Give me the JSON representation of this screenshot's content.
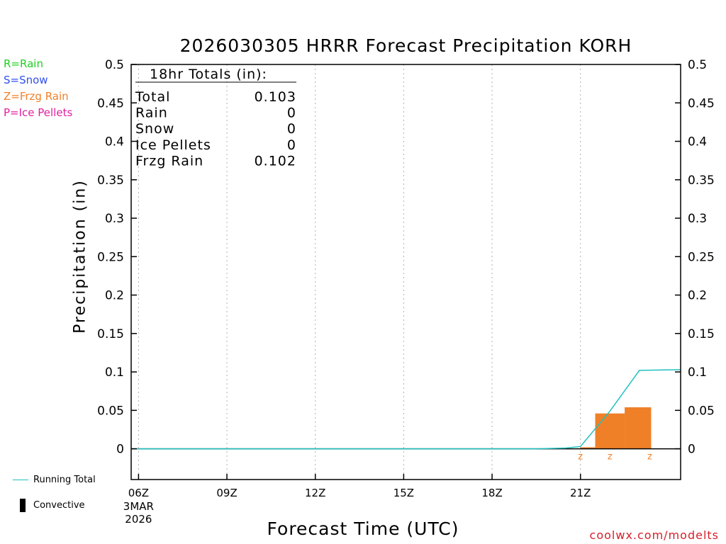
{
  "chart_data": {
    "type": "bar",
    "title": "2026030305 HRRR Forecast Precipitation KORH",
    "xlabel": "Forecast Time (UTC)",
    "ylabel": "Precipitation (in)",
    "ylim": [
      -0.04,
      0.5
    ],
    "yticks": [
      0,
      0.05,
      0.1,
      0.15,
      0.2,
      0.25,
      0.3,
      0.35,
      0.4,
      0.45,
      0.5
    ],
    "ytick_labels": [
      "0",
      "0.05",
      "0.1",
      "0.15",
      "0.2",
      "0.25",
      "0.3",
      "0.35",
      "0.4",
      "0.45",
      "0.5"
    ],
    "xlim_hours": [
      5.75,
      24.4
    ],
    "xticks": [
      {
        "hour": 6,
        "label": "06Z",
        "sub1": "3MAR",
        "sub2": "2026"
      },
      {
        "hour": 9,
        "label": "09Z"
      },
      {
        "hour": 12,
        "label": "12Z"
      },
      {
        "hour": 15,
        "label": "15Z"
      },
      {
        "hour": 18,
        "label": "18Z"
      },
      {
        "hour": 21,
        "label": "21Z"
      }
    ],
    "bars": [
      {
        "start": 21.0,
        "end": 21.5,
        "value": 0.002,
        "type": "Z"
      },
      {
        "start": 21.5,
        "end": 22.5,
        "value": 0.046,
        "type": "Z"
      },
      {
        "start": 22.5,
        "end": 23.4,
        "value": 0.054,
        "type": "Z"
      }
    ],
    "ptype_markers": [
      {
        "hour": 21.0,
        "label": "z"
      },
      {
        "hour": 22.0,
        "label": "z"
      },
      {
        "hour": 23.35,
        "label": "z"
      }
    ],
    "running_total": {
      "name": "Running Total",
      "x": [
        5.75,
        19.5,
        20.5,
        21.0,
        22.0,
        23.0,
        24.4
      ],
      "y": [
        0,
        0,
        0.001,
        0.003,
        0.049,
        0.102,
        0.103
      ]
    },
    "bar_color": "#f08028",
    "line_color": "#20c0c0",
    "totals_box": {
      "title": "18hr Totals (in):",
      "rows": [
        {
          "label": "Total",
          "value": "0.103"
        },
        {
          "label": "Rain",
          "value": "0"
        },
        {
          "label": "Snow",
          "value": "0"
        },
        {
          "label": "Ice Pellets",
          "value": "0"
        },
        {
          "label": "Frzg Rain",
          "value": "0.102"
        }
      ]
    }
  },
  "legend": [
    {
      "text": "R=Rain",
      "color": "#20d020"
    },
    {
      "text": "S=Snow",
      "color": "#3050f0"
    },
    {
      "text": "Z=Frzg Rain",
      "color": "#f08028"
    },
    {
      "text": "P=Ice Pellets",
      "color": "#e020a0"
    }
  ],
  "key": {
    "running_total": "Running Total",
    "convective": "Convective"
  },
  "credit": "coolwx.com/modelts"
}
